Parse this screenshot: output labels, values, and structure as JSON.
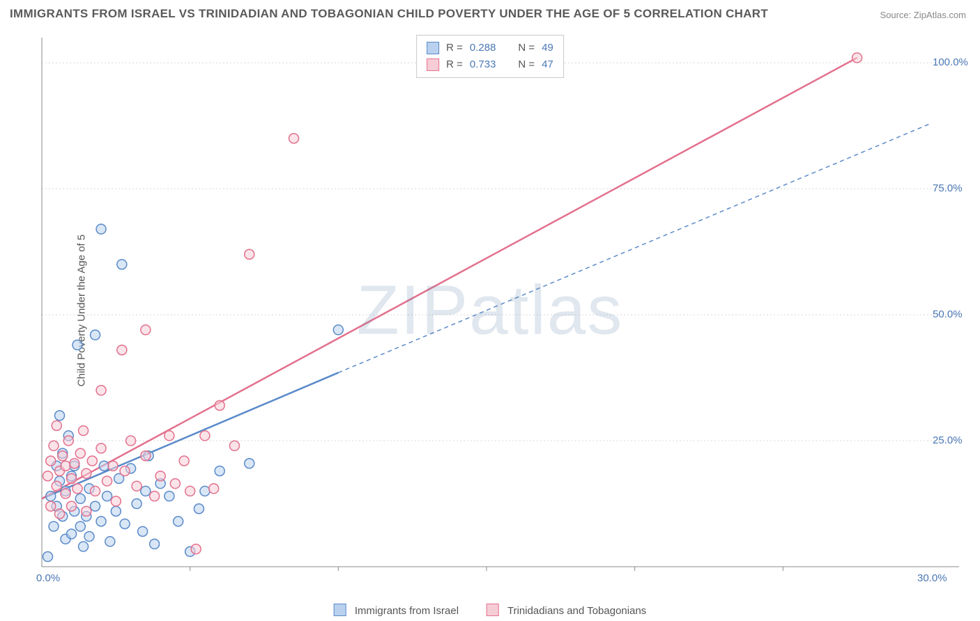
{
  "title": "IMMIGRANTS FROM ISRAEL VS TRINIDADIAN AND TOBAGONIAN CHILD POVERTY UNDER THE AGE OF 5 CORRELATION CHART",
  "source": "Source: ZipAtlas.com",
  "ylabel": "Child Poverty Under the Age of 5",
  "watermark": "ZIPatlas",
  "chart": {
    "type": "scatter_with_regression",
    "xlim": [
      0,
      30
    ],
    "ylim": [
      0,
      105
    ],
    "x_ticks": [
      0,
      30
    ],
    "x_tick_labels": [
      "0.0%",
      "30.0%"
    ],
    "y_ticks": [
      25,
      50,
      75,
      100
    ],
    "y_tick_labels": [
      "25.0%",
      "50.0%",
      "75.0%",
      "100.0%"
    ],
    "grid_color": "#d8d8d8",
    "axis_color": "#888888",
    "background_color": "#ffffff",
    "x_tick_minor": [
      5,
      10,
      15,
      20,
      25
    ],
    "marker_radius": 7,
    "marker_stroke_width": 1.5,
    "series": [
      {
        "name": "Immigrants from Israel",
        "color_fill": "#b9d1ee",
        "color_stroke": "#5a8ac9",
        "R": 0.288,
        "N": 49,
        "trend": {
          "x1": 0,
          "y1": 13.5,
          "x2": 10,
          "y2": 38.5,
          "extend_x": 30,
          "extend_y": 88,
          "dash_after_x": 10
        },
        "points": [
          [
            0.2,
            2.0
          ],
          [
            0.3,
            14.0
          ],
          [
            0.4,
            8.0
          ],
          [
            0.5,
            20.0
          ],
          [
            0.5,
            12.0
          ],
          [
            0.6,
            17.0
          ],
          [
            0.6,
            30.0
          ],
          [
            0.7,
            10.0
          ],
          [
            0.7,
            22.5
          ],
          [
            0.8,
            5.5
          ],
          [
            0.8,
            15.0
          ],
          [
            0.9,
            26.0
          ],
          [
            1.0,
            6.5
          ],
          [
            1.0,
            18.0
          ],
          [
            1.1,
            11.0
          ],
          [
            1.1,
            20.0
          ],
          [
            1.2,
            44.0
          ],
          [
            1.3,
            8.0
          ],
          [
            1.3,
            13.5
          ],
          [
            1.4,
            4.0
          ],
          [
            1.5,
            10.0
          ],
          [
            1.6,
            15.5
          ],
          [
            1.6,
            6.0
          ],
          [
            1.8,
            12.0
          ],
          [
            1.8,
            46.0
          ],
          [
            2.0,
            67.0
          ],
          [
            2.0,
            9.0
          ],
          [
            2.1,
            20.0
          ],
          [
            2.2,
            14.0
          ],
          [
            2.3,
            5.0
          ],
          [
            2.5,
            11.0
          ],
          [
            2.6,
            17.5
          ],
          [
            2.7,
            60.0
          ],
          [
            2.8,
            8.5
          ],
          [
            3.0,
            19.5
          ],
          [
            3.2,
            12.5
          ],
          [
            3.4,
            7.0
          ],
          [
            3.5,
            15.0
          ],
          [
            3.6,
            22.0
          ],
          [
            3.8,
            4.5
          ],
          [
            4.0,
            16.5
          ],
          [
            4.3,
            14.0
          ],
          [
            4.6,
            9.0
          ],
          [
            5.0,
            3.0
          ],
          [
            5.3,
            11.5
          ],
          [
            5.5,
            15.0
          ],
          [
            6.0,
            19.0
          ],
          [
            7.0,
            20.5
          ],
          [
            10.0,
            47.0
          ]
        ]
      },
      {
        "name": "Trinidadians and Tobagonians",
        "color_fill": "#f6cdd7",
        "color_stroke": "#e3708d",
        "R": 0.733,
        "N": 47,
        "trend": {
          "x1": 0,
          "y1": 13.5,
          "x2": 27.5,
          "y2": 101.0
        },
        "points": [
          [
            0.2,
            18.0
          ],
          [
            0.3,
            21.0
          ],
          [
            0.3,
            12.0
          ],
          [
            0.4,
            24.0
          ],
          [
            0.5,
            16.0
          ],
          [
            0.5,
            28.0
          ],
          [
            0.6,
            19.0
          ],
          [
            0.6,
            10.5
          ],
          [
            0.7,
            22.0
          ],
          [
            0.8,
            14.5
          ],
          [
            0.8,
            20.0
          ],
          [
            0.9,
            25.0
          ],
          [
            1.0,
            17.5
          ],
          [
            1.0,
            12.0
          ],
          [
            1.1,
            20.5
          ],
          [
            1.2,
            15.5
          ],
          [
            1.3,
            22.5
          ],
          [
            1.4,
            27.0
          ],
          [
            1.5,
            18.5
          ],
          [
            1.5,
            11.0
          ],
          [
            1.7,
            21.0
          ],
          [
            1.8,
            15.0
          ],
          [
            2.0,
            23.5
          ],
          [
            2.0,
            35.0
          ],
          [
            2.2,
            17.0
          ],
          [
            2.4,
            20.0
          ],
          [
            2.5,
            13.0
          ],
          [
            2.7,
            43.0
          ],
          [
            2.8,
            19.0
          ],
          [
            3.0,
            25.0
          ],
          [
            3.2,
            16.0
          ],
          [
            3.5,
            47.0
          ],
          [
            3.5,
            22.0
          ],
          [
            3.8,
            14.0
          ],
          [
            4.0,
            18.0
          ],
          [
            4.3,
            26.0
          ],
          [
            4.5,
            16.5
          ],
          [
            4.8,
            21.0
          ],
          [
            5.0,
            15.0
          ],
          [
            5.2,
            3.5
          ],
          [
            5.5,
            26.0
          ],
          [
            6.0,
            32.0
          ],
          [
            6.5,
            24.0
          ],
          [
            7.0,
            62.0
          ],
          [
            8.5,
            85.0
          ],
          [
            5.8,
            15.5
          ],
          [
            27.5,
            101.0
          ]
        ]
      }
    ]
  },
  "legend_top": {
    "rows": [
      {
        "series": 0,
        "r_label": "R =",
        "r_val": "0.288",
        "n_label": "N =",
        "n_val": "49"
      },
      {
        "series": 1,
        "r_label": "R =",
        "r_val": "0.733",
        "n_label": "N =",
        "n_val": "47"
      }
    ]
  },
  "legend_bottom": [
    {
      "series": 0,
      "label": "Immigrants from Israel"
    },
    {
      "series": 1,
      "label": "Trinidadians and Tobagonians"
    }
  ]
}
